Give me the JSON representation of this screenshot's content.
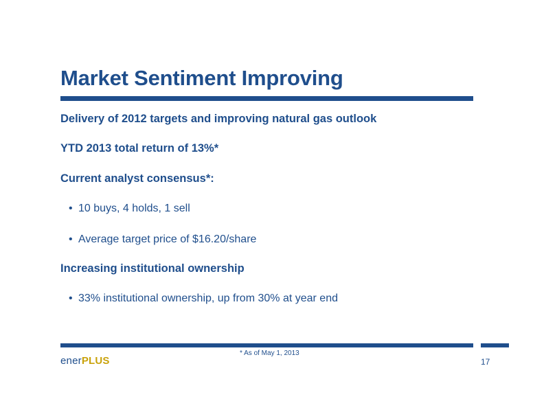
{
  "slide": {
    "title": "Market Sentiment Improving",
    "points": [
      {
        "heading": "Delivery of 2012 targets and improving natural gas outlook"
      },
      {
        "heading": "YTD 2013 total return of 13%*"
      },
      {
        "heading": "Current analyst consensus*:",
        "bullets": [
          "10 buys, 4 holds, 1 sell",
          "Average target price of $16.20/share"
        ]
      },
      {
        "heading": "Increasing institutional ownership",
        "bullets": [
          "33% institutional ownership, up from 30% at year end"
        ]
      }
    ],
    "bullet_glyph": "•",
    "footnote": "* As of May 1, 2013",
    "page_number": "17",
    "logo": {
      "part1": "ener",
      "part2": "PLUS"
    }
  },
  "colors": {
    "accent": "#1f4e8c",
    "logo_gold": "#c9a20a",
    "background": "#ffffff"
  }
}
